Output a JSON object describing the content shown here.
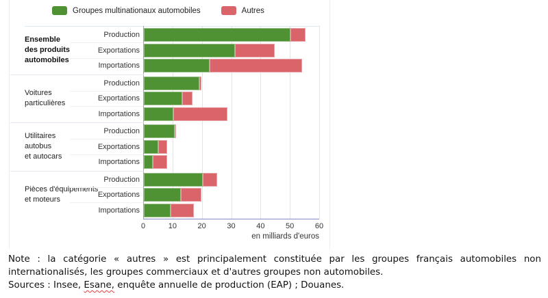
{
  "chart_data": {
    "type": "bar",
    "orientation": "horizontal",
    "stacked": true,
    "xlabel": "en milliards d'euros",
    "xlim": [
      0,
      60
    ],
    "x_ticks": [
      0,
      10,
      20,
      30,
      40,
      50,
      60
    ],
    "grid": true,
    "legend_position": "top",
    "series": [
      {
        "name": "Groupes multinationaux automobiles",
        "color": "#4e9233"
      },
      {
        "name": "Autres",
        "color": "#d9656a"
      }
    ],
    "groups": [
      {
        "label_lines": [
          "Ensemble",
          "des produits",
          "automobiles"
        ],
        "bold": true,
        "rows": [
          {
            "label": "Production",
            "values": [
              50,
              5
            ]
          },
          {
            "label": "Exportations",
            "values": [
              31,
              13.5
            ]
          },
          {
            "label": "Importations",
            "values": [
              22.5,
              31.5
            ]
          }
        ]
      },
      {
        "label_lines": [
          "Voitures",
          "particulières"
        ],
        "bold": false,
        "rows": [
          {
            "label": "Production",
            "values": [
              19,
              0.5
            ]
          },
          {
            "label": "Exportations",
            "values": [
              13,
              3.5
            ]
          },
          {
            "label": "Importations",
            "values": [
              10,
              18.5
            ]
          }
        ]
      },
      {
        "label_lines": [
          "Utilitaires",
          "autobus",
          "et autocars"
        ],
        "bold": false,
        "rows": [
          {
            "label": "Production",
            "values": [
              10.5,
              0.4
            ]
          },
          {
            "label": "Exportations",
            "values": [
              5,
              3
            ]
          },
          {
            "label": "Importations",
            "values": [
              3,
              5
            ]
          }
        ]
      },
      {
        "label_lines": [
          "Pièces d'équipements",
          "et moteurs"
        ],
        "bold": false,
        "rows": [
          {
            "label": "Production",
            "values": [
              20,
              5
            ]
          },
          {
            "label": "Exportations",
            "values": [
              12.5,
              7
            ]
          },
          {
            "label": "Importations",
            "values": [
              9,
              8
            ]
          }
        ]
      }
    ]
  },
  "note": {
    "text": "Note : la catégorie « autres » est principalement constituée par les groupes français automobiles non internationalisés, les groupes commerciaux et d'autres groupes non automobiles."
  },
  "sources": {
    "prefix": "Sources : Insee, ",
    "misspelled": "Esane,",
    "suffix": " enquête annuelle de production (EAP) ; Douanes."
  },
  "style_colors": {
    "gridline": "#e3e3e3",
    "axis_line": "#8088c5",
    "separator": "#e2e8f0"
  }
}
